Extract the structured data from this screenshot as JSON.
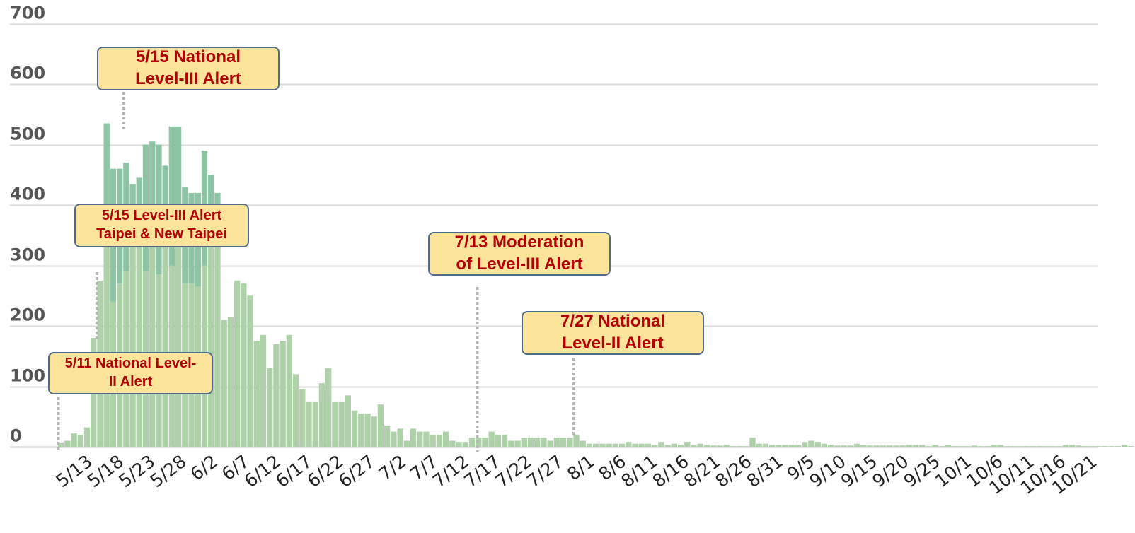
{
  "colors": {
    "local_bar": "#afd1aa",
    "backlog_bar": "#8cc4a4",
    "grid": "#d9d9d9",
    "callout_fill": "#fde49b",
    "callout_border": "#4f6a8a",
    "callout_text": "#b00000",
    "guide_line": "#b5b5b5"
  },
  "chart_data": {
    "type": "bar",
    "stacked": true,
    "title": "",
    "xlabel": "",
    "ylabel": "",
    "ylim": [
      0,
      700
    ],
    "y_ticks": [
      0,
      100,
      200,
      300,
      400,
      500,
      600,
      700
    ],
    "grid": "horizontal",
    "x_start": "5/11",
    "x_end": "10/21",
    "x_tick_labels": [
      "5/13",
      "5/18",
      "5/23",
      "5/28",
      "6/2",
      "6/7",
      "6/12",
      "6/17",
      "6/22",
      "6/27",
      "7/2",
      "7/7",
      "7/12",
      "7/17",
      "7/22",
      "7/27",
      "8/1",
      "8/6",
      "8/11",
      "8/16",
      "8/21",
      "8/26",
      "8/31",
      "9/5",
      "9/10",
      "9/15",
      "9/20",
      "9/25",
      "10/1",
      "10/6",
      "10/11",
      "10/16",
      "10/21"
    ],
    "series": [
      {
        "values": [
          7,
          10,
          22,
          20,
          32,
          180,
          275,
          330,
          240,
          270,
          290,
          330,
          330,
          290,
          330,
          285,
          330,
          300,
          340,
          270,
          270,
          265,
          300,
          330,
          340,
          210,
          215,
          275,
          270,
          250,
          175,
          185,
          130,
          170,
          175,
          185,
          120,
          95,
          75,
          75,
          105,
          130,
          75,
          75,
          85,
          60,
          55,
          55,
          50,
          70,
          35,
          25,
          30,
          10,
          30,
          25,
          25,
          20,
          20,
          25,
          10,
          8,
          8,
          15,
          15,
          15,
          25,
          20,
          20,
          10,
          10,
          15,
          15,
          15,
          15,
          10,
          15,
          15,
          15,
          20,
          10,
          5,
          5,
          5,
          5,
          5,
          5,
          8,
          5,
          5,
          5,
          3,
          8,
          3,
          5,
          3,
          8,
          3,
          5,
          3,
          2,
          2,
          3,
          1,
          1,
          1,
          15,
          5,
          5,
          3,
          3,
          3,
          3,
          3,
          8,
          10,
          8,
          5,
          3,
          2,
          2,
          2,
          5,
          3,
          2,
          2,
          2,
          2,
          2,
          2,
          3,
          3,
          3,
          1,
          3,
          1,
          3,
          1,
          1,
          1,
          2,
          1,
          1,
          3,
          3,
          1,
          1,
          1,
          1,
          1,
          1,
          1,
          1,
          1,
          3,
          3,
          2,
          1,
          1,
          1,
          1,
          1,
          1,
          3,
          1
        ]
      },
      {
        "values": [
          0,
          0,
          0,
          0,
          0,
          0,
          0,
          205,
          220,
          190,
          180,
          105,
          115,
          210,
          175,
          215,
          135,
          230,
          190,
          160,
          150,
          155,
          190,
          120,
          80,
          0,
          0,
          0,
          0,
          0,
          0,
          0,
          0,
          0,
          0,
          0,
          0,
          0,
          0,
          0,
          0,
          0,
          0,
          0,
          0,
          0,
          0,
          0,
          0,
          0,
          0,
          0,
          0,
          0,
          0,
          0,
          0,
          0,
          0,
          0,
          0,
          0,
          0,
          0,
          0,
          0,
          0,
          0,
          0,
          0,
          0,
          0,
          0,
          0,
          0,
          0,
          0,
          0,
          0,
          0,
          0,
          0,
          0,
          0,
          0,
          0,
          0,
          0,
          0,
          0,
          0,
          0,
          0,
          0,
          0,
          0,
          0,
          0,
          0,
          0,
          0,
          0,
          0,
          0,
          0,
          0,
          0,
          0,
          0,
          0,
          0,
          0,
          0,
          0,
          0,
          0,
          0,
          0,
          0,
          0,
          0,
          0,
          0,
          0,
          0,
          0,
          0,
          0,
          0,
          0,
          0,
          0,
          0,
          0,
          0,
          0,
          0,
          0,
          0,
          0,
          0,
          0,
          0,
          0,
          0,
          0,
          0,
          0,
          0,
          0,
          0,
          0,
          0,
          0,
          0,
          0,
          0,
          0,
          0,
          0,
          0,
          0,
          0,
          0,
          0
        ]
      }
    ],
    "annotations": [
      {
        "date": "5/11",
        "day_index": 0,
        "lines": [
          "5/11 National Level-",
          "II Alert"
        ]
      },
      {
        "date": "5/15",
        "day_index": 4,
        "lines": [
          "5/15 Level-III Alert",
          "Taipei & New Taipei"
        ]
      },
      {
        "date": "5/15",
        "day_index": 4,
        "lines": [
          "5/15 National",
          "Level-III Alert"
        ]
      },
      {
        "date": "7/13",
        "day_index": 63,
        "lines": [
          "7/13 Moderation",
          "of Level-III Alert"
        ]
      },
      {
        "date": "7/27",
        "day_index": 77,
        "lines": [
          "7/27 National",
          "Level-II Alert"
        ]
      }
    ]
  }
}
